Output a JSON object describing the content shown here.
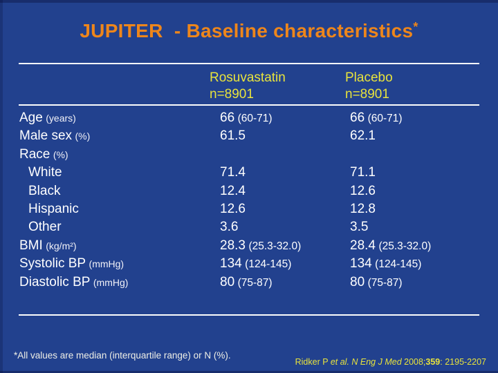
{
  "slide": {
    "title": "JUPITER  - Baseline characteristics",
    "title_sup": "*",
    "footnote": "*All values are median (interquartile range) or N (%)."
  },
  "table": {
    "header": [
      {
        "label": "Rosuvastatin",
        "n": "n=8901"
      },
      {
        "label": "Placebo",
        "n": "n=8901"
      }
    ],
    "rows": [
      {
        "label": "Age",
        "unit": "(years)",
        "v1": "66",
        "r1": "(60-71)",
        "v2": "66",
        "r2": "(60-71)"
      },
      {
        "label": "Male sex",
        "unit": "(%)",
        "v1": "61.5",
        "r1": "",
        "v2": "62.1",
        "r2": ""
      },
      {
        "label": "Race",
        "unit": "(%)",
        "v1": "",
        "r1": "",
        "v2": "",
        "r2": ""
      },
      {
        "label": "White",
        "unit": "",
        "v1": "71.4",
        "r1": "",
        "v2": "71.1",
        "r2": ""
      },
      {
        "label": "Black",
        "unit": "",
        "v1": "12.4",
        "r1": "",
        "v2": "12.6",
        "r2": ""
      },
      {
        "label": "Hispanic",
        "unit": "",
        "v1": "12.6",
        "r1": "",
        "v2": "12.8",
        "r2": ""
      },
      {
        "label": "Other",
        "unit": "",
        "v1": "3.6",
        "r1": "",
        "v2": "3.5",
        "r2": ""
      },
      {
        "label": "BMI",
        "unit": "(kg/m²)",
        "v1": "28.3",
        "r1": "(25.3-32.0)",
        "v2": "28.4",
        "r2": "(25.3-32.0)"
      },
      {
        "label": "Systolic BP",
        "unit": "(mmHg)",
        "v1": "134",
        "r1": "(124-145)",
        "v2": "134",
        "r2": "(124-145)"
      },
      {
        "label": "Diastolic BP",
        "unit": "(mmHg)",
        "v1": "80",
        "r1": "(75-87)",
        "v2": "80",
        "r2": "(75-87)"
      }
    ]
  },
  "citation": {
    "authors": "Ridker P ",
    "etal": "et al. ",
    "journal": "N Eng J Med ",
    "year": "2008;",
    "volume": "359",
    "pages": ": 2195-2207"
  },
  "colors": {
    "background": "#22418E",
    "title_orange": "#EE861B",
    "header_yellow": "#E8E33C",
    "body_text": "#FFFFFF",
    "rule_line": "#FDFDFD",
    "footnote_text": "#EFEFE6"
  }
}
